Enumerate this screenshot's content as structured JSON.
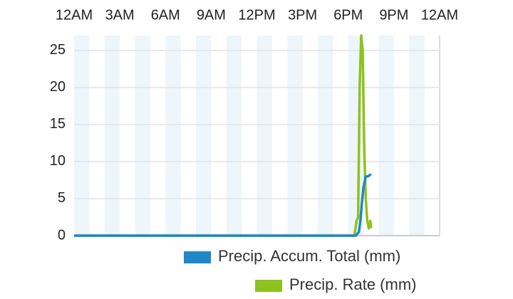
{
  "chart_data": {
    "type": "line",
    "xlim": [
      0,
      24
    ],
    "xticks": [
      {
        "value": 0,
        "label": "12AM"
      },
      {
        "value": 3,
        "label": "3AM"
      },
      {
        "value": 6,
        "label": "6AM"
      },
      {
        "value": 9,
        "label": "9AM"
      },
      {
        "value": 12,
        "label": "12PM"
      },
      {
        "value": 15,
        "label": "3PM"
      },
      {
        "value": 18,
        "label": "6PM"
      },
      {
        "value": 21,
        "label": "9PM"
      },
      {
        "value": 24,
        "label": "12AM"
      }
    ],
    "ylim": [
      0,
      27
    ],
    "yticks": [
      0,
      5,
      10,
      15,
      20,
      25
    ],
    "grid": true,
    "series": [
      {
        "name": "Precip. Accum. Total (mm)",
        "color": "#1e88c8",
        "x": [
          0,
          18.5,
          18.7,
          18.8,
          18.9,
          19.0,
          19.15,
          19.3,
          19.5
        ],
        "values": [
          0,
          0,
          0.5,
          2,
          4.5,
          6.5,
          8,
          8,
          8.3
        ]
      },
      {
        "name": "Precip. Rate (mm)",
        "color": "#8dc21f",
        "x": [
          0,
          18.4,
          18.55,
          18.65,
          18.75,
          18.85,
          18.95,
          19.05,
          19.15,
          19.25,
          19.35,
          19.45,
          19.5
        ],
        "values": [
          0,
          0,
          2,
          2.5,
          20,
          27,
          25,
          12,
          5,
          2,
          1,
          2,
          1
        ]
      }
    ]
  }
}
